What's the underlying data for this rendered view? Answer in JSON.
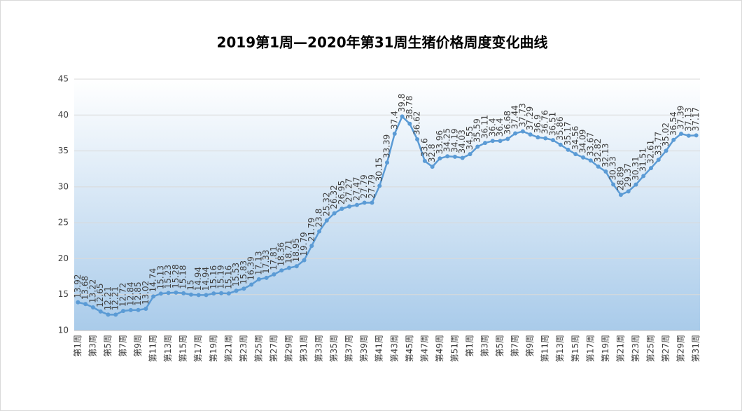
{
  "chart_data": {
    "type": "line",
    "title": "2019第1周—2020年第31周生猪价格周度变化曲线",
    "categories": [
      "第1周",
      null,
      "第3周",
      null,
      "第5周",
      null,
      "第7周",
      null,
      "第9周",
      null,
      "第11周",
      null,
      "第13周",
      null,
      "第15周",
      null,
      "第17周",
      null,
      "第19周",
      null,
      "第21周",
      null,
      "第23周",
      null,
      "第25周",
      null,
      "第27周",
      null,
      "第29周",
      null,
      "第31周",
      null,
      "第33周",
      null,
      "第35周",
      null,
      "第37周",
      null,
      "第39周",
      null,
      "第41周",
      null,
      "第43周",
      null,
      "第45周",
      null,
      "第47周",
      null,
      "第49周",
      null,
      "第51周",
      null,
      "第1周",
      null,
      "第3周",
      null,
      "第5周",
      null,
      "第7周",
      null,
      "第9周",
      null,
      "第11周",
      null,
      "第13周",
      null,
      "第15周",
      null,
      "第17周",
      null,
      "第19周",
      null,
      "第21周",
      null,
      "第23周",
      null,
      "第25周",
      null,
      "第27周",
      null,
      "第29周",
      null,
      "第31周"
    ],
    "series": [
      {
        "name": "生猪价格",
        "color": "#5b9bd5",
        "values": [
          13.92,
          13.68,
          13.22,
          12.65,
          12.21,
          12.21,
          12.72,
          12.84,
          12.85,
          13.02,
          14.74,
          15.13,
          15.23,
          15.28,
          15.18,
          15,
          14.94,
          14.94,
          15.16,
          15.19,
          15.16,
          15.53,
          15.83,
          16.39,
          17.13,
          17.33,
          17.81,
          18.36,
          18.71,
          18.95,
          19.79,
          21.79,
          23.8,
          25.32,
          26.32,
          26.95,
          27.27,
          27.47,
          27.79,
          27.79,
          30.15,
          33.39,
          37.4,
          39.8,
          38.78,
          36.62,
          33.6,
          32.8,
          33.96,
          34.25,
          34.19,
          34.03,
          34.55,
          35.59,
          36.11,
          36.4,
          36.4,
          36.68,
          37.44,
          37.73,
          37.29,
          36.9,
          36.76,
          36.51,
          35.86,
          35.17,
          34.56,
          34.09,
          33.67,
          32.82,
          32.13,
          30.33,
          28.89,
          29.37,
          30.31,
          31.51,
          32.61,
          33.77,
          35.02,
          36.54,
          37.39,
          37.13,
          37.17
        ]
      }
    ],
    "ylim": [
      10,
      45
    ],
    "yticks": [
      10,
      15,
      20,
      25,
      30,
      35,
      40,
      45
    ],
    "grid": true
  }
}
